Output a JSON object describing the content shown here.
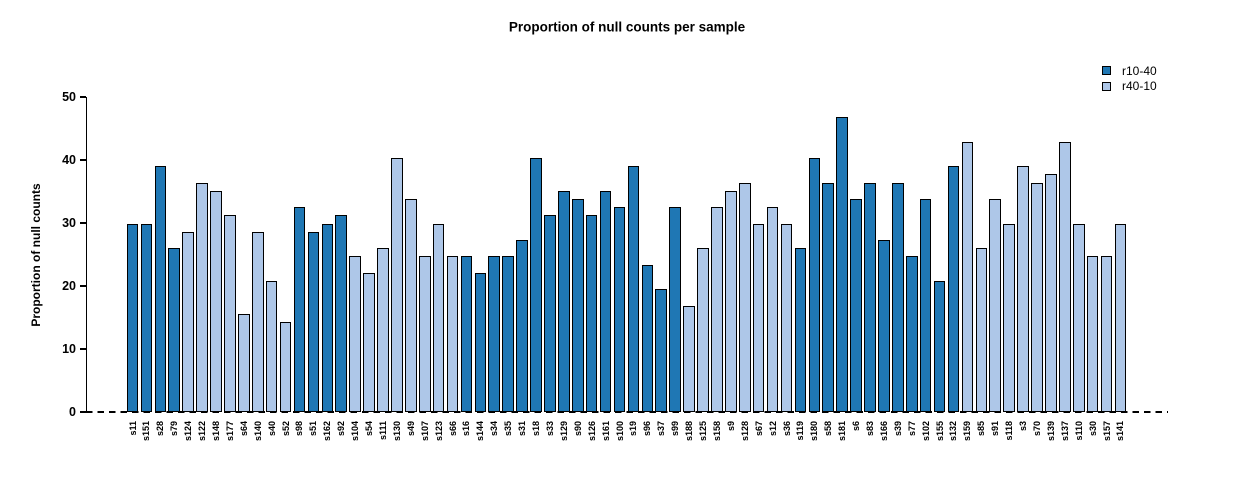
{
  "title": "Proportion of null counts per sample",
  "y_axis": {
    "label": "Proportion of null counts",
    "ticks": [
      0,
      10,
      20,
      30,
      40,
      50
    ]
  },
  "legend": {
    "items": [
      {
        "label": "r10-40",
        "color": "#1F77B4"
      },
      {
        "label": "r40-10",
        "color": "#AEC7E8"
      }
    ]
  },
  "chart_data": {
    "type": "bar",
    "title": "Proportion of null counts per sample",
    "xlabel": "",
    "ylabel": "Proportion of null counts",
    "ylim": [
      0,
      50
    ],
    "grid": false,
    "legend_position": "top-right",
    "zero_line_style": "dashed",
    "series": [
      {
        "name": "r10-40",
        "color": "#1F77B4"
      },
      {
        "name": "r40-10",
        "color": "#AEC7E8"
      }
    ],
    "samples": [
      {
        "label": "s11",
        "series": "r10-40",
        "value": 29.9
      },
      {
        "label": "s151",
        "series": "r10-40",
        "value": 29.9
      },
      {
        "label": "s28",
        "series": "r10-40",
        "value": 39.0
      },
      {
        "label": "s79",
        "series": "r10-40",
        "value": 26.0
      },
      {
        "label": "s124",
        "series": "r40-10",
        "value": 28.6
      },
      {
        "label": "s122",
        "series": "r40-10",
        "value": 36.4
      },
      {
        "label": "s148",
        "series": "r40-10",
        "value": 35.1
      },
      {
        "label": "s177",
        "series": "r40-10",
        "value": 31.2
      },
      {
        "label": "s64",
        "series": "r40-10",
        "value": 15.6
      },
      {
        "label": "s140",
        "series": "r40-10",
        "value": 28.6
      },
      {
        "label": "s40",
        "series": "r40-10",
        "value": 20.8
      },
      {
        "label": "s52",
        "series": "r40-10",
        "value": 14.3
      },
      {
        "label": "s98",
        "series": "r10-40",
        "value": 32.5
      },
      {
        "label": "s51",
        "series": "r10-40",
        "value": 28.6
      },
      {
        "label": "s162",
        "series": "r10-40",
        "value": 29.9
      },
      {
        "label": "s92",
        "series": "r10-40",
        "value": 31.2
      },
      {
        "label": "s104",
        "series": "r40-10",
        "value": 24.7
      },
      {
        "label": "s54",
        "series": "r40-10",
        "value": 22.1
      },
      {
        "label": "s111",
        "series": "r40-10",
        "value": 26.0
      },
      {
        "label": "s130",
        "series": "r40-10",
        "value": 40.3
      },
      {
        "label": "s49",
        "series": "r40-10",
        "value": 33.8
      },
      {
        "label": "s107",
        "series": "r40-10",
        "value": 24.7
      },
      {
        "label": "s123",
        "series": "r40-10",
        "value": 29.9
      },
      {
        "label": "s66",
        "series": "r40-10",
        "value": 24.7
      },
      {
        "label": "s16",
        "series": "r10-40",
        "value": 24.7
      },
      {
        "label": "s144",
        "series": "r10-40",
        "value": 22.1
      },
      {
        "label": "s34",
        "series": "r10-40",
        "value": 24.7
      },
      {
        "label": "s35",
        "series": "r10-40",
        "value": 24.7
      },
      {
        "label": "s31",
        "series": "r10-40",
        "value": 27.3
      },
      {
        "label": "s18",
        "series": "r10-40",
        "value": 40.3
      },
      {
        "label": "s33",
        "series": "r10-40",
        "value": 31.2
      },
      {
        "label": "s129",
        "series": "r10-40",
        "value": 35.1
      },
      {
        "label": "s90",
        "series": "r10-40",
        "value": 33.8
      },
      {
        "label": "s126",
        "series": "r10-40",
        "value": 31.2
      },
      {
        "label": "s161",
        "series": "r10-40",
        "value": 35.1
      },
      {
        "label": "s100",
        "series": "r10-40",
        "value": 32.5
      },
      {
        "label": "s19",
        "series": "r10-40",
        "value": 39.0
      },
      {
        "label": "s96",
        "series": "r10-40",
        "value": 23.4
      },
      {
        "label": "s37",
        "series": "r10-40",
        "value": 19.5
      },
      {
        "label": "s99",
        "series": "r10-40",
        "value": 32.5
      },
      {
        "label": "s188",
        "series": "r40-10",
        "value": 16.9
      },
      {
        "label": "s125",
        "series": "r40-10",
        "value": 26.0
      },
      {
        "label": "s158",
        "series": "r40-10",
        "value": 32.5
      },
      {
        "label": "s9",
        "series": "r40-10",
        "value": 35.1
      },
      {
        "label": "s128",
        "series": "r40-10",
        "value": 36.4
      },
      {
        "label": "s67",
        "series": "r40-10",
        "value": 29.9
      },
      {
        "label": "s12",
        "series": "r40-10",
        "value": 32.5
      },
      {
        "label": "s36",
        "series": "r40-10",
        "value": 29.9
      },
      {
        "label": "s119",
        "series": "r10-40",
        "value": 26.0
      },
      {
        "label": "s180",
        "series": "r10-40",
        "value": 40.3
      },
      {
        "label": "s58",
        "series": "r10-40",
        "value": 36.4
      },
      {
        "label": "s181",
        "series": "r10-40",
        "value": 46.8
      },
      {
        "label": "s6",
        "series": "r10-40",
        "value": 33.8
      },
      {
        "label": "s83",
        "series": "r10-40",
        "value": 36.4
      },
      {
        "label": "s166",
        "series": "r10-40",
        "value": 27.3
      },
      {
        "label": "s39",
        "series": "r10-40",
        "value": 36.4
      },
      {
        "label": "s77",
        "series": "r10-40",
        "value": 24.7
      },
      {
        "label": "s102",
        "series": "r10-40",
        "value": 33.8
      },
      {
        "label": "s155",
        "series": "r10-40",
        "value": 20.8
      },
      {
        "label": "s132",
        "series": "r10-40",
        "value": 39.0
      },
      {
        "label": "s159",
        "series": "r40-10",
        "value": 42.9
      },
      {
        "label": "s85",
        "series": "r40-10",
        "value": 26.0
      },
      {
        "label": "s91",
        "series": "r40-10",
        "value": 33.8
      },
      {
        "label": "s118",
        "series": "r40-10",
        "value": 29.9
      },
      {
        "label": "s3",
        "series": "r40-10",
        "value": 39.0
      },
      {
        "label": "s70",
        "series": "r40-10",
        "value": 36.4
      },
      {
        "label": "s139",
        "series": "r40-10",
        "value": 37.7
      },
      {
        "label": "s137",
        "series": "r40-10",
        "value": 42.9
      },
      {
        "label": "s110",
        "series": "r40-10",
        "value": 29.9
      },
      {
        "label": "s30",
        "series": "r40-10",
        "value": 24.7
      },
      {
        "label": "s157",
        "series": "r40-10",
        "value": 24.7
      },
      {
        "label": "s141",
        "series": "r40-10",
        "value": 29.9
      }
    ]
  }
}
